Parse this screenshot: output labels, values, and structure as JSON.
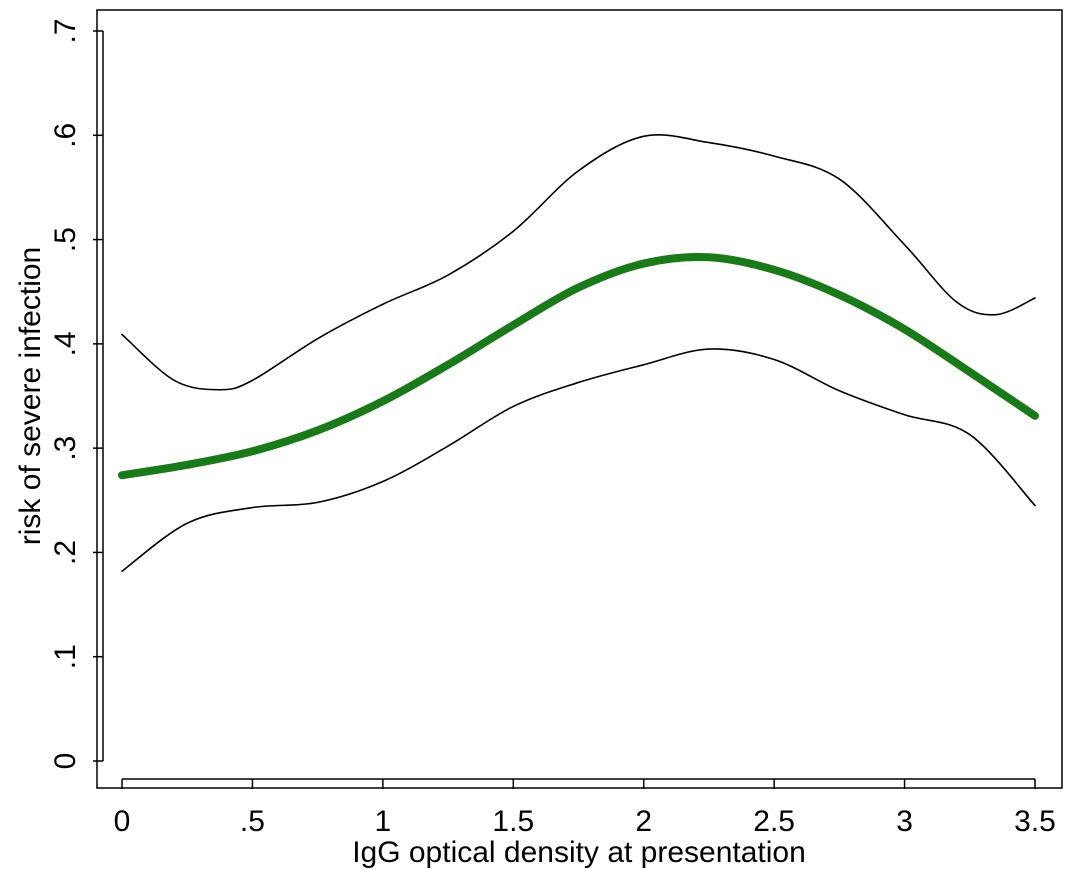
{
  "chart_data": {
    "type": "line",
    "title": "",
    "xlabel": "IgG optical density at presentation",
    "ylabel": "risk of severe infection",
    "xlim": [
      0,
      3.5
    ],
    "ylim": [
      0,
      0.7
    ],
    "x_ticks": [
      {
        "value": 0,
        "label": "0"
      },
      {
        "value": 0.5,
        "label": ".5"
      },
      {
        "value": 1,
        "label": "1"
      },
      {
        "value": 1.5,
        "label": "1.5"
      },
      {
        "value": 2,
        "label": "2"
      },
      {
        "value": 2.5,
        "label": "2.5"
      },
      {
        "value": 3,
        "label": "3"
      },
      {
        "value": 3.5,
        "label": "3.5"
      }
    ],
    "y_ticks": [
      {
        "value": 0,
        "label": "0"
      },
      {
        "value": 0.1,
        "label": ".1"
      },
      {
        "value": 0.2,
        "label": ".2"
      },
      {
        "value": 0.3,
        "label": ".3"
      },
      {
        "value": 0.4,
        "label": ".4"
      },
      {
        "value": 0.5,
        "label": ".5"
      },
      {
        "value": 0.6,
        "label": ".6"
      },
      {
        "value": 0.7,
        "label": ".7"
      }
    ],
    "grid": false,
    "legend": "none",
    "series": [
      {
        "role": "estimate",
        "color": "#1a7a1a",
        "x": [
          0,
          0.25,
          0.5,
          0.75,
          1.0,
          1.25,
          1.5,
          1.75,
          2.0,
          2.25,
          2.5,
          2.75,
          3.0,
          3.25,
          3.5
        ],
        "y": [
          0.274,
          0.284,
          0.297,
          0.317,
          0.345,
          0.38,
          0.418,
          0.454,
          0.477,
          0.483,
          0.471,
          0.447,
          0.414,
          0.373,
          0.331
        ]
      },
      {
        "role": "upper-ci",
        "color": "#000000",
        "x": [
          0,
          0.2,
          0.375,
          0.5,
          0.75,
          1.0,
          1.25,
          1.5,
          1.75,
          2.0,
          2.25,
          2.5,
          2.75,
          3.0,
          3.2,
          3.35,
          3.5
        ],
        "y": [
          0.409,
          0.365,
          0.356,
          0.365,
          0.405,
          0.438,
          0.466,
          0.508,
          0.566,
          0.599,
          0.593,
          0.58,
          0.558,
          0.495,
          0.44,
          0.428,
          0.444
        ]
      },
      {
        "role": "lower-ci",
        "color": "#000000",
        "x": [
          0,
          0.25,
          0.5,
          0.75,
          1.0,
          1.25,
          1.5,
          1.75,
          2.0,
          2.25,
          2.5,
          2.75,
          3.0,
          3.25,
          3.5
        ],
        "y": [
          0.182,
          0.228,
          0.243,
          0.248,
          0.268,
          0.302,
          0.34,
          0.363,
          0.38,
          0.395,
          0.385,
          0.355,
          0.332,
          0.313,
          0.245
        ]
      }
    ]
  }
}
